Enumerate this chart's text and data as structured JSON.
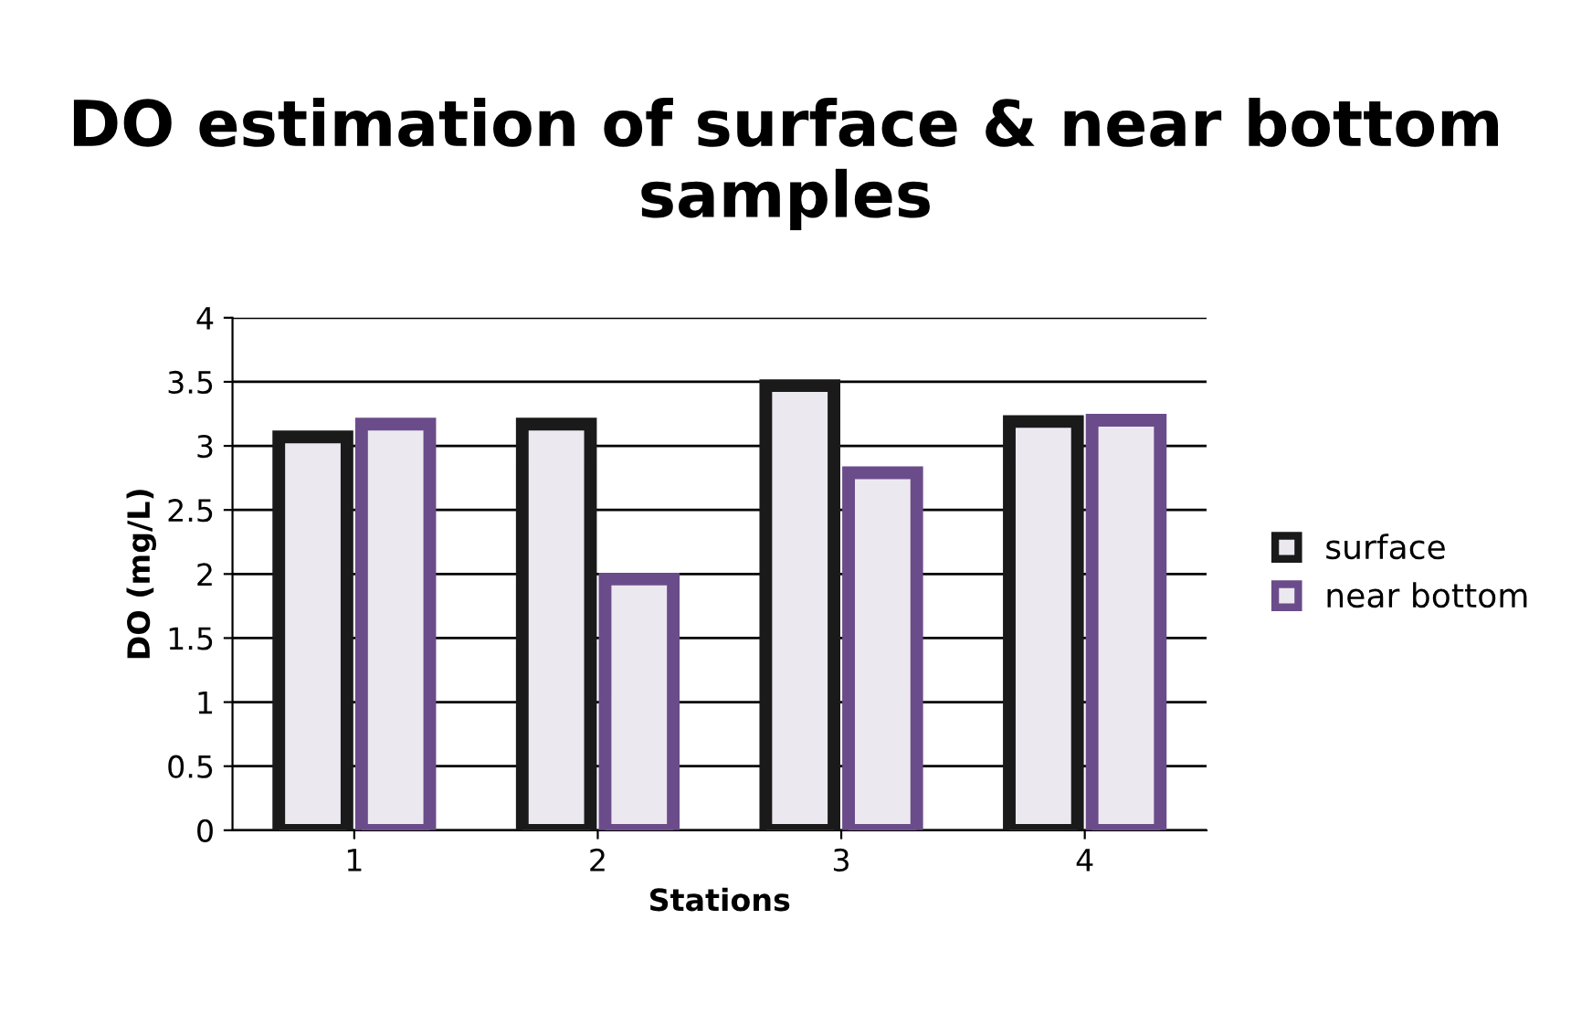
{
  "chart_data": {
    "type": "bar",
    "title": "DO estimation of surface & near bottom samples",
    "xlabel": "Stations",
    "ylabel": "DO (mg/L)",
    "categories": [
      "1",
      "2",
      "3",
      "4"
    ],
    "series": [
      {
        "name": "surface",
        "color": "#1a1a1a",
        "values": [
          3.07,
          3.17,
          3.47,
          3.19
        ]
      },
      {
        "name": "near bottom",
        "color": "#6b4c8a",
        "values": [
          3.17,
          1.96,
          2.79,
          3.2
        ]
      }
    ],
    "ylim": [
      0,
      4
    ],
    "yticks": [
      0,
      0.5,
      1,
      1.5,
      2,
      2.5,
      3,
      3.5,
      4
    ],
    "grid": "y",
    "legend": "right"
  }
}
